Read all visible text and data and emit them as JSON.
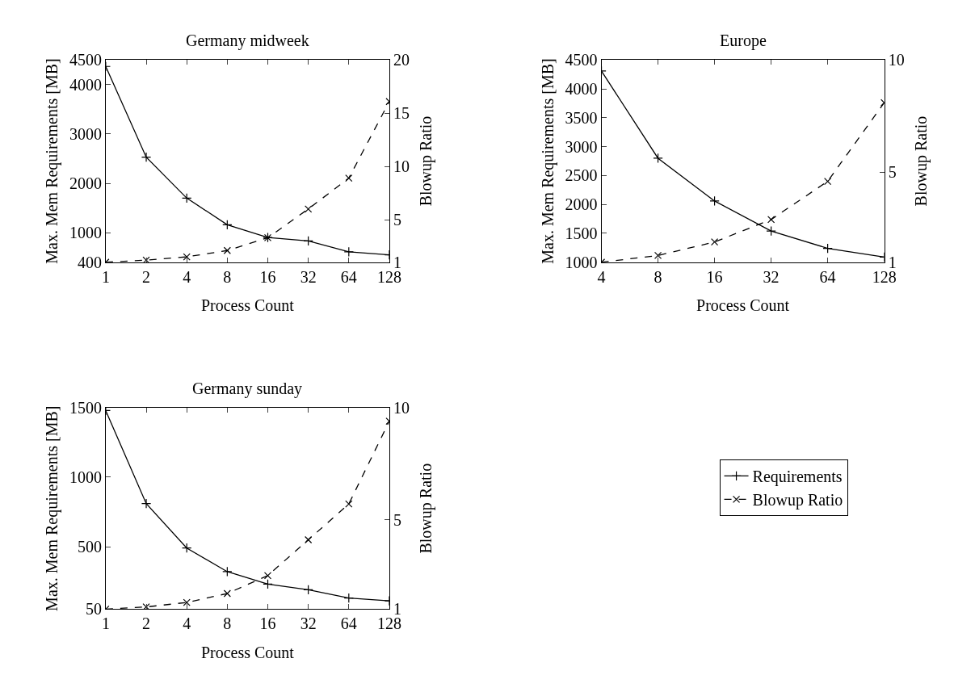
{
  "chart_data": [
    {
      "type": "line",
      "title": "Germany midweek",
      "xlabel": "Process Count",
      "ylabel": "Max. Mem Requirements [MB]",
      "y2label": "Blowup Ratio",
      "log": "x",
      "legend": "bottom right",
      "x": [
        1,
        2,
        4,
        8,
        16,
        32,
        64,
        128
      ],
      "xlim": [
        1,
        128
      ],
      "xticks": [
        1,
        2,
        4,
        8,
        16,
        32,
        64,
        128
      ],
      "ylim": [
        400,
        4500
      ],
      "yticks": [
        400,
        1000,
        2000,
        3000,
        4000,
        4500
      ],
      "y2lim": [
        1,
        20
      ],
      "y2ticks": [
        1,
        5,
        10,
        15,
        20
      ],
      "series": [
        {
          "name": "Requirements",
          "color": "#000000",
          "marker": "cross",
          "line_style": "solid",
          "values": [
            4370,
            2530,
            1700,
            1160,
            900,
            830,
            610,
            550
          ]
        },
        {
          "name": "Blowup Ratio",
          "color": "#000000",
          "marker": "x",
          "line_style": "dashed",
          "axis": "y2",
          "values": [
            1,
            1.2,
            1.5,
            2.1,
            3.3,
            6.0,
            8.9,
            16.1
          ]
        }
      ]
    },
    {
      "type": "line",
      "title": "Europe",
      "xlabel": "Process Count",
      "ylabel": "Max. Mem Requirements [MB]",
      "y2label": "Blowup Ratio",
      "log": "x",
      "x": [
        4,
        8,
        16,
        32,
        64,
        128
      ],
      "xlim": [
        4,
        128
      ],
      "xticks": [
        4,
        8,
        16,
        32,
        64,
        128
      ],
      "ylim": [
        1000,
        4500
      ],
      "yticks": [
        1000,
        1500,
        2000,
        2500,
        3000,
        3500,
        4000,
        4500
      ],
      "y2lim": [
        1,
        10
      ],
      "y2ticks": [
        1,
        5,
        10
      ],
      "series": [
        {
          "color": "#000000",
          "marker": "cross",
          "line_style": "solid",
          "values": [
            4310,
            2800,
            2060,
            1540,
            1240,
            1090
          ]
        },
        {
          "color": "#000000",
          "marker": "x",
          "line_style": "dashed",
          "axis": "y2",
          "values": [
            1,
            1.3,
            1.9,
            2.9,
            4.6,
            8.1
          ]
        }
      ]
    },
    {
      "type": "line",
      "title": "Germany sunday",
      "xlabel": "Process Count",
      "ylabel": "Max. Mem Requirements [MB]",
      "y2label": "Blowup Ratio",
      "log": "x",
      "x": [
        1,
        2,
        4,
        8,
        16,
        32,
        64,
        128
      ],
      "xlim": [
        1,
        128
      ],
      "xticks": [
        1,
        2,
        4,
        8,
        16,
        32,
        64,
        128
      ],
      "ylim": [
        50,
        1500
      ],
      "yticks": [
        50,
        500,
        1000,
        1500
      ],
      "y2lim": [
        1,
        10
      ],
      "y2ticks": [
        1,
        5,
        10
      ],
      "series": [
        {
          "color": "#000000",
          "marker": "cross",
          "line_style": "solid",
          "values": [
            1480,
            810,
            490,
            320,
            230,
            190,
            130,
            110
          ]
        },
        {
          "color": "#000000",
          "marker": "x",
          "line_style": "dashed",
          "axis": "y2",
          "values": [
            1,
            1.1,
            1.3,
            1.7,
            2.5,
            4.1,
            5.7,
            9.4
          ]
        }
      ]
    }
  ]
}
